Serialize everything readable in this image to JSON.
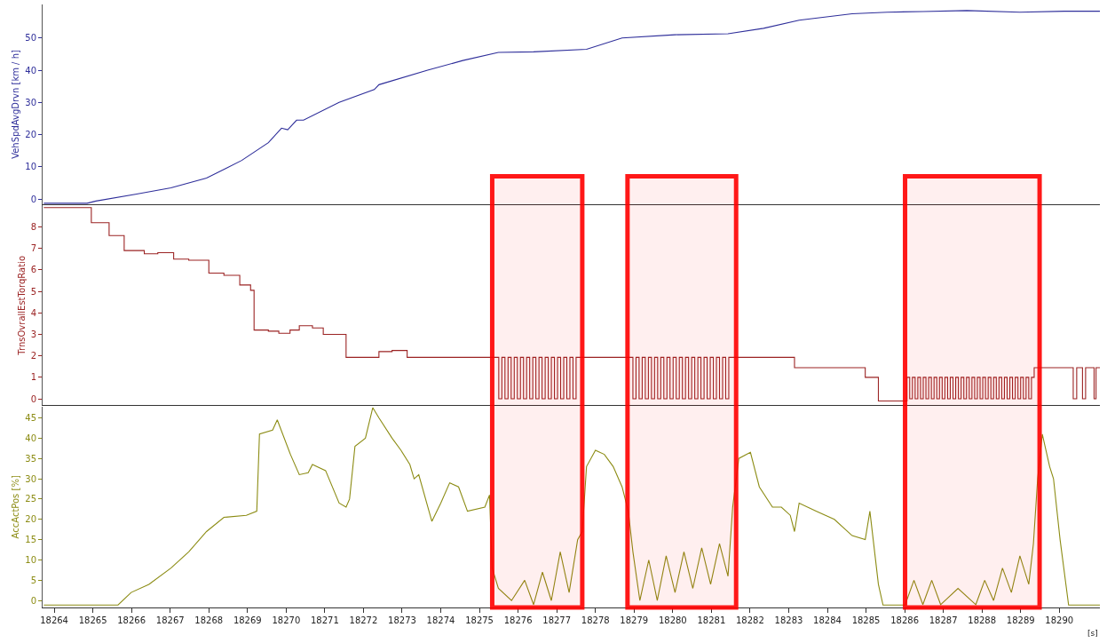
{
  "chart_data": [
    {
      "type": "line",
      "ylabel": "VehSpdAvgDrvn [km / h]",
      "xlim": [
        18263.7,
        18291.05
      ],
      "ylim": [
        -1.6,
        60.4
      ],
      "yticks": [
        0,
        10,
        20,
        30,
        40,
        50
      ],
      "tick_labels": "y",
      "series": [
        {
          "color": "#2e2e9a",
          "x": [
            18263.73,
            18264.85,
            18265.08,
            18266.1,
            18267.02,
            18267.94,
            18268.85,
            18269.54,
            18269.88,
            18270.04,
            18270.27,
            18270.45,
            18271.37,
            18272.28,
            18272.4,
            18273.66,
            18274.57,
            18275.49,
            18276.4,
            18277.77,
            18278.69,
            18280.06,
            18281.43,
            18282.35,
            18283.27,
            18284.64,
            18285.55,
            18286.47,
            18287.61,
            18288.98,
            18290.13,
            18291.05
          ],
          "values": [
            -1.3,
            -1.3,
            -0.6,
            1.5,
            3.5,
            6.5,
            12,
            17.5,
            22,
            21.5,
            24.5,
            24.5,
            30,
            34,
            35.5,
            40,
            43,
            45.5,
            45.7,
            46.5,
            50,
            51,
            51.3,
            53,
            55.5,
            57.5,
            58,
            58.2,
            58.5,
            58,
            58.3,
            58.3
          ]
        }
      ]
    },
    {
      "type": "step",
      "ylabel": "TrnsOvrallEstTorqRatio",
      "xlim": [
        18263.7,
        18291.05
      ],
      "ylim": [
        -0.3,
        9
      ],
      "yticks": [
        0,
        1,
        2,
        3,
        4,
        5,
        6,
        7,
        8
      ],
      "tick_labels": "y",
      "series": [
        {
          "color": "#9b2323",
          "x": [
            18263.73,
            18264.5,
            18264.96,
            18265.42,
            18265.81,
            18266.33,
            18266.68,
            18267.09,
            18267.48,
            18268.0,
            18268.39,
            18268.8,
            18269.08,
            18269.17,
            18269.54,
            18269.81,
            18270.1,
            18270.34,
            18270.68,
            18270.96,
            18271.55,
            18272.4,
            18272.74,
            18273.13,
            18275.5,
            18275.58,
            18275.66,
            18275.74,
            18275.82,
            18275.9,
            18275.98,
            18276.06,
            18276.14,
            18276.22,
            18276.3,
            18276.38,
            18276.46,
            18276.54,
            18276.62,
            18276.7,
            18276.78,
            18276.86,
            18276.94,
            18277.02,
            18277.1,
            18277.18,
            18277.26,
            18277.34,
            18277.42,
            18277.5,
            18278.97,
            18279.05,
            18279.13,
            18279.21,
            18279.29,
            18279.37,
            18279.45,
            18279.53,
            18279.61,
            18279.69,
            18279.77,
            18279.85,
            18279.93,
            18280.01,
            18280.09,
            18280.17,
            18280.25,
            18280.33,
            18280.41,
            18280.49,
            18280.57,
            18280.65,
            18280.73,
            18280.81,
            18280.89,
            18280.97,
            18281.05,
            18281.13,
            18281.21,
            18281.29,
            18281.37,
            18281.45,
            18283.15,
            18284.98,
            18285.32,
            18286.06,
            18286.13,
            18286.2,
            18286.27,
            18286.34,
            18286.41,
            18286.48,
            18286.55,
            18286.62,
            18286.69,
            18286.76,
            18286.83,
            18286.9,
            18286.97,
            18287.04,
            18287.11,
            18287.18,
            18287.25,
            18287.32,
            18287.39,
            18287.46,
            18287.53,
            18287.6,
            18287.67,
            18287.74,
            18287.81,
            18287.88,
            18287.95,
            18288.02,
            18288.09,
            18288.16,
            18288.23,
            18288.3,
            18288.37,
            18288.44,
            18288.51,
            18288.58,
            18288.65,
            18288.72,
            18288.79,
            18288.86,
            18288.93,
            18289.0,
            18289.07,
            18289.14,
            18289.21,
            18289.28,
            18289.35,
            18290.36,
            18290.45,
            18290.6,
            18290.68,
            18290.9,
            18290.95,
            18291.05
          ],
          "values": [
            8.9,
            8.9,
            8.2,
            7.6,
            6.9,
            6.75,
            6.8,
            6.5,
            6.45,
            5.85,
            5.75,
            5.3,
            5.05,
            3.2,
            3.15,
            3.05,
            3.2,
            3.4,
            3.3,
            3.0,
            1.93,
            2.2,
            2.25,
            1.93,
            0,
            1.93,
            0,
            1.93,
            0,
            1.93,
            0,
            1.93,
            0,
            1.93,
            0,
            1.93,
            0,
            1.93,
            0,
            1.93,
            0,
            1.93,
            0,
            1.93,
            0,
            1.93,
            0,
            1.93,
            0,
            1.93,
            0,
            1.93,
            0,
            1.93,
            0,
            1.93,
            0,
            1.93,
            0,
            1.93,
            0,
            1.93,
            0,
            1.93,
            0,
            1.93,
            0,
            1.93,
            0,
            1.93,
            0,
            1.93,
            0,
            1.93,
            0,
            1.93,
            0,
            1.93,
            0,
            1.93,
            0,
            1.93,
            1.45,
            1.0,
            -0.1,
            1,
            0,
            1,
            0,
            1,
            0,
            1,
            0,
            1,
            0,
            1,
            0,
            1,
            0,
            1,
            0,
            1,
            0,
            1,
            0,
            1,
            0,
            1,
            0,
            1,
            0,
            1,
            0,
            1,
            0,
            1,
            0,
            1,
            0,
            1,
            0,
            1,
            0,
            1,
            0,
            1,
            0,
            1,
            0,
            1,
            0,
            1,
            1.45,
            0,
            1.45,
            0,
            1.45,
            0,
            1.45,
            1.45
          ]
        }
      ]
    },
    {
      "type": "line",
      "ylabel": "AccActPos [%]",
      "xlabel": "[s]",
      "xlim": [
        18263.7,
        18291.05
      ],
      "ylim": [
        -1.7,
        47.8
      ],
      "yticks": [
        0,
        5,
        10,
        15,
        20,
        25,
        30,
        35,
        40,
        45
      ],
      "xticks": [
        18264,
        18265,
        18266,
        18267,
        18268,
        18269,
        18270,
        18271,
        18272,
        18273,
        18274,
        18275,
        18276,
        18277,
        18278,
        18279,
        18280,
        18281,
        18282,
        18283,
        18284,
        18285,
        18286,
        18287,
        18288,
        18289,
        18290
      ],
      "bands": [
        {
          "axis": "x",
          "from": 18275.33,
          "to": 18277.66,
          "color": "#ff0000"
        },
        {
          "axis": "x",
          "from": 18278.83,
          "to": 18281.64,
          "color": "#ff0000"
        },
        {
          "axis": "x",
          "from": 18286.01,
          "to": 18289.49,
          "color": "#ff0000"
        }
      ],
      "series": [
        {
          "color": "#8c8c14",
          "x": [
            18263.73,
            18265.65,
            18265.99,
            18266.45,
            18267.02,
            18267.48,
            18267.94,
            18268.39,
            18268.97,
            18269.24,
            18269.31,
            18269.65,
            18269.77,
            18270.11,
            18270.34,
            18270.57,
            18270.68,
            18271.02,
            18271.37,
            18271.55,
            18271.64,
            18271.78,
            18272.05,
            18272.24,
            18272.4,
            18272.74,
            18272.97,
            18273.2,
            18273.31,
            18273.43,
            18273.77,
            18274.0,
            18274.23,
            18274.46,
            18274.69,
            18275.14,
            18275.26,
            18275.33,
            18275.49,
            18275.83,
            18276.17,
            18276.4,
            18276.63,
            18276.86,
            18277.09,
            18277.32,
            18277.54,
            18277.66,
            18277.77,
            18278.0,
            18278.23,
            18278.46,
            18278.69,
            18278.85,
            18278.97,
            18279.15,
            18279.38,
            18279.6,
            18279.83,
            18280.06,
            18280.29,
            18280.52,
            18280.75,
            18280.98,
            18281.21,
            18281.43,
            18281.55,
            18281.71,
            18282.01,
            18282.24,
            18282.58,
            18282.81,
            18283.04,
            18283.15,
            18283.27,
            18283.72,
            18284.18,
            18284.64,
            18284.98,
            18285.1,
            18285.32,
            18285.44,
            18286.01,
            18286.24,
            18286.47,
            18286.7,
            18286.93,
            18287.38,
            18287.84,
            18288.07,
            18288.3,
            18288.53,
            18288.76,
            18288.98,
            18289.21,
            18289.33,
            18289.44,
            18289.56,
            18289.75,
            18289.85,
            18290.02,
            18290.24,
            18291.05
          ],
          "values": [
            -1.1,
            -1.1,
            2,
            4,
            8,
            12,
            17,
            20.5,
            21,
            22,
            41,
            42,
            44.5,
            36,
            31,
            31.5,
            33.5,
            32,
            24,
            23,
            25,
            38,
            40,
            47.5,
            45,
            40,
            37,
            33.5,
            30,
            31,
            19.5,
            24,
            29,
            28,
            22,
            23,
            26,
            8,
            3,
            0,
            5,
            -1,
            7,
            0,
            12,
            2,
            15,
            17,
            33,
            37,
            36,
            33,
            28,
            22,
            12,
            0,
            10,
            0,
            11,
            2,
            12,
            3,
            13,
            4,
            14,
            6,
            23,
            35,
            36.5,
            28,
            23,
            23,
            21,
            17,
            24,
            22,
            20,
            16,
            15,
            22,
            4,
            -1.1,
            -1.1,
            5,
            -1,
            5,
            -1,
            3,
            -1,
            5,
            0,
            8,
            2,
            11,
            4,
            14,
            30,
            41,
            33,
            30,
            15,
            -1.1,
            -1.1
          ]
        }
      ]
    }
  ]
}
